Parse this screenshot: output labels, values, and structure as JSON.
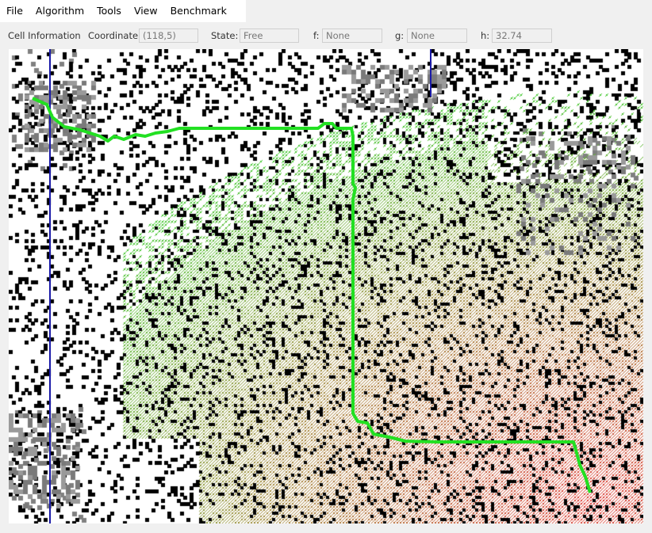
{
  "menu": [
    "File",
    "Algorithm",
    "Tools",
    "View",
    "Benchmark"
  ],
  "cell_info": {
    "title": "Cell Information",
    "coordinate_label": "Coordinate:",
    "coordinate_value": "(118,5)",
    "state_label": "State:",
    "state_value": "Free",
    "f_label": "f:",
    "f_value": "None",
    "g_label": "g:",
    "g_value": "None",
    "h_label": "h:",
    "h_value": "32.74"
  },
  "colors": {
    "path": "#22e022",
    "obstacle": "#000000",
    "unknown": "#808080",
    "near": "#4ccc3a",
    "mid": "#a08a3a",
    "far": "#dd3a33",
    "boundary": "#1a1aa8"
  }
}
